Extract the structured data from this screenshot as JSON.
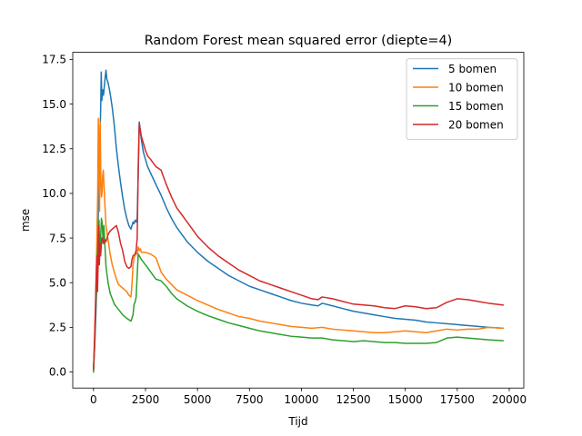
{
  "chart_data": {
    "type": "line",
    "title": "Random Forest mean squared error (diepte=4)",
    "xlabel": "Tijd",
    "ylabel": "mse",
    "xlim": [
      -1000,
      20700
    ],
    "ylim": [
      -0.9,
      17.9
    ],
    "xticks": [
      0,
      2500,
      5000,
      7500,
      10000,
      12500,
      15000,
      17500,
      20000
    ],
    "yticks": [
      0.0,
      2.5,
      5.0,
      7.5,
      10.0,
      12.5,
      15.0,
      17.5
    ],
    "xtick_labels": [
      "0",
      "2500",
      "5000",
      "7500",
      "10000",
      "12500",
      "15000",
      "17500",
      "20000"
    ],
    "ytick_labels": [
      "0.0",
      "2.5",
      "5.0",
      "7.5",
      "10.0",
      "12.5",
      "15.0",
      "17.5"
    ],
    "grid": false,
    "legend_position": "top-right",
    "series": [
      {
        "name": "5 bomen",
        "color": "#1f77b4",
        "points": [
          [
            0,
            0.2
          ],
          [
            60,
            1.5
          ],
          [
            120,
            3.5
          ],
          [
            180,
            6
          ],
          [
            230,
            9
          ],
          [
            260,
            11
          ],
          [
            300,
            13
          ],
          [
            340,
            14.5
          ],
          [
            370,
            16.8
          ],
          [
            400,
            15.2
          ],
          [
            440,
            15.8
          ],
          [
            480,
            15.5
          ],
          [
            520,
            16
          ],
          [
            560,
            16.5
          ],
          [
            600,
            16.9
          ],
          [
            640,
            16.4
          ],
          [
            700,
            16.2
          ],
          [
            800,
            15.6
          ],
          [
            900,
            14.8
          ],
          [
            1000,
            13.8
          ],
          [
            1100,
            12.5
          ],
          [
            1200,
            11.5
          ],
          [
            1300,
            10.6
          ],
          [
            1400,
            9.8
          ],
          [
            1500,
            9.1
          ],
          [
            1600,
            8.6
          ],
          [
            1700,
            8.2
          ],
          [
            1800,
            8
          ],
          [
            1850,
            8.2
          ],
          [
            1900,
            8.4
          ],
          [
            1950,
            8.3
          ],
          [
            2000,
            8.5
          ],
          [
            2050,
            8.4
          ],
          [
            2100,
            8.6
          ],
          [
            2150,
            11
          ],
          [
            2200,
            14
          ],
          [
            2300,
            13
          ],
          [
            2400,
            12.3
          ],
          [
            2600,
            11.5
          ],
          [
            2800,
            11
          ],
          [
            3000,
            10.5
          ],
          [
            3250,
            9.9
          ],
          [
            3500,
            9.2
          ],
          [
            3750,
            8.6
          ],
          [
            4000,
            8.1
          ],
          [
            4250,
            7.7
          ],
          [
            4500,
            7.3
          ],
          [
            4750,
            7
          ],
          [
            5000,
            6.7
          ],
          [
            5500,
            6.2
          ],
          [
            6000,
            5.8
          ],
          [
            6500,
            5.4
          ],
          [
            7000,
            5.1
          ],
          [
            7500,
            4.8
          ],
          [
            8000,
            4.6
          ],
          [
            8500,
            4.4
          ],
          [
            9000,
            4.2
          ],
          [
            9500,
            4
          ],
          [
            10000,
            3.85
          ],
          [
            10500,
            3.75
          ],
          [
            10800,
            3.7
          ],
          [
            11000,
            3.85
          ],
          [
            11500,
            3.7
          ],
          [
            12000,
            3.55
          ],
          [
            12500,
            3.4
          ],
          [
            13000,
            3.3
          ],
          [
            13500,
            3.2
          ],
          [
            14000,
            3.1
          ],
          [
            14500,
            3
          ],
          [
            15000,
            2.95
          ],
          [
            15500,
            2.9
          ],
          [
            16000,
            2.8
          ],
          [
            16500,
            2.75
          ],
          [
            17000,
            2.7
          ],
          [
            17500,
            2.65
          ],
          [
            18000,
            2.6
          ],
          [
            18500,
            2.55
          ],
          [
            19000,
            2.5
          ],
          [
            19700,
            2.45
          ]
        ]
      },
      {
        "name": "10 bomen",
        "color": "#ff7f0e",
        "points": [
          [
            0,
            0.1
          ],
          [
            50,
            1.5
          ],
          [
            100,
            4
          ],
          [
            140,
            6
          ],
          [
            170,
            8
          ],
          [
            200,
            10
          ],
          [
            230,
            14.2
          ],
          [
            260,
            12
          ],
          [
            290,
            9
          ],
          [
            320,
            14
          ],
          [
            350,
            11
          ],
          [
            380,
            9.8
          ],
          [
            410,
            10
          ],
          [
            440,
            11
          ],
          [
            470,
            11.3
          ],
          [
            500,
            10.5
          ],
          [
            550,
            9.3
          ],
          [
            600,
            8.2
          ],
          [
            700,
            7.4
          ],
          [
            800,
            6.6
          ],
          [
            900,
            6
          ],
          [
            1000,
            5.6
          ],
          [
            1100,
            5.2
          ],
          [
            1200,
            4.9
          ],
          [
            1300,
            4.8
          ],
          [
            1400,
            4.7
          ],
          [
            1500,
            4.6
          ],
          [
            1600,
            4.5
          ],
          [
            1700,
            4.3
          ],
          [
            1800,
            4.2
          ],
          [
            1850,
            4.9
          ],
          [
            1900,
            6
          ],
          [
            1950,
            6.4
          ],
          [
            2000,
            6.5
          ],
          [
            2050,
            6.7
          ],
          [
            2100,
            6.6
          ],
          [
            2150,
            7
          ],
          [
            2200,
            6.8
          ],
          [
            2250,
            6.9
          ],
          [
            2300,
            6.7
          ],
          [
            2500,
            6.7
          ],
          [
            2750,
            6.6
          ],
          [
            3000,
            6.4
          ],
          [
            3250,
            5.6
          ],
          [
            3500,
            5.2
          ],
          [
            3750,
            4.9
          ],
          [
            4000,
            4.6
          ],
          [
            4500,
            4.3
          ],
          [
            5000,
            4
          ],
          [
            5500,
            3.75
          ],
          [
            6000,
            3.5
          ],
          [
            6500,
            3.3
          ],
          [
            7000,
            3.1
          ],
          [
            7500,
            3
          ],
          [
            8000,
            2.85
          ],
          [
            8500,
            2.75
          ],
          [
            9000,
            2.65
          ],
          [
            9500,
            2.55
          ],
          [
            10000,
            2.5
          ],
          [
            10500,
            2.45
          ],
          [
            11000,
            2.5
          ],
          [
            11500,
            2.4
          ],
          [
            12000,
            2.35
          ],
          [
            12500,
            2.3
          ],
          [
            13000,
            2.25
          ],
          [
            13500,
            2.2
          ],
          [
            14000,
            2.2
          ],
          [
            14500,
            2.25
          ],
          [
            15000,
            2.3
          ],
          [
            15500,
            2.25
          ],
          [
            16000,
            2.2
          ],
          [
            16500,
            2.3
          ],
          [
            17000,
            2.4
          ],
          [
            17500,
            2.35
          ],
          [
            18000,
            2.4
          ],
          [
            18500,
            2.4
          ],
          [
            19000,
            2.5
          ],
          [
            19700,
            2.45
          ]
        ]
      },
      {
        "name": "15 bomen",
        "color": "#2ca02c",
        "points": [
          [
            0,
            0
          ],
          [
            50,
            1.5
          ],
          [
            100,
            3.5
          ],
          [
            140,
            4.5
          ],
          [
            180,
            6.5
          ],
          [
            220,
            7.5
          ],
          [
            260,
            8.5
          ],
          [
            300,
            6.8
          ],
          [
            340,
            7.5
          ],
          [
            380,
            8.6
          ],
          [
            420,
            8.3
          ],
          [
            460,
            7.2
          ],
          [
            500,
            8.2
          ],
          [
            550,
            7
          ],
          [
            600,
            5.9
          ],
          [
            700,
            5
          ],
          [
            800,
            4.4
          ],
          [
            900,
            4.1
          ],
          [
            1000,
            3.8
          ],
          [
            1200,
            3.5
          ],
          [
            1400,
            3.2
          ],
          [
            1600,
            3
          ],
          [
            1800,
            2.85
          ],
          [
            1900,
            3.2
          ],
          [
            1950,
            3.8
          ],
          [
            2000,
            3.9
          ],
          [
            2050,
            4.2
          ],
          [
            2100,
            5.4
          ],
          [
            2150,
            6.6
          ],
          [
            2200,
            6.5
          ],
          [
            2300,
            6.3
          ],
          [
            2500,
            6
          ],
          [
            2750,
            5.6
          ],
          [
            3000,
            5.2
          ],
          [
            3250,
            5.1
          ],
          [
            3500,
            4.8
          ],
          [
            3750,
            4.4
          ],
          [
            4000,
            4.1
          ],
          [
            4500,
            3.7
          ],
          [
            5000,
            3.4
          ],
          [
            5500,
            3.15
          ],
          [
            6000,
            2.95
          ],
          [
            6500,
            2.75
          ],
          [
            7000,
            2.6
          ],
          [
            7500,
            2.45
          ],
          [
            8000,
            2.3
          ],
          [
            8500,
            2.2
          ],
          [
            9000,
            2.1
          ],
          [
            9500,
            2
          ],
          [
            10000,
            1.95
          ],
          [
            10500,
            1.9
          ],
          [
            11000,
            1.9
          ],
          [
            11500,
            1.8
          ],
          [
            12000,
            1.75
          ],
          [
            12500,
            1.7
          ],
          [
            13000,
            1.75
          ],
          [
            13500,
            1.7
          ],
          [
            14000,
            1.65
          ],
          [
            14500,
            1.65
          ],
          [
            15000,
            1.6
          ],
          [
            15500,
            1.6
          ],
          [
            16000,
            1.6
          ],
          [
            16500,
            1.65
          ],
          [
            17000,
            1.9
          ],
          [
            17500,
            1.95
          ],
          [
            18000,
            1.9
          ],
          [
            18500,
            1.85
          ],
          [
            19000,
            1.8
          ],
          [
            19700,
            1.75
          ]
        ]
      },
      {
        "name": "20 bomen",
        "color": "#d62728",
        "points": [
          [
            0,
            0.15
          ],
          [
            50,
            2
          ],
          [
            100,
            4
          ],
          [
            130,
            5.5
          ],
          [
            160,
            6.5
          ],
          [
            190,
            4.5
          ],
          [
            220,
            6
          ],
          [
            250,
            8.2
          ],
          [
            280,
            6
          ],
          [
            310,
            7.2
          ],
          [
            340,
            6.5
          ],
          [
            370,
            7
          ],
          [
            400,
            7.5
          ],
          [
            450,
            7.4
          ],
          [
            500,
            7.2
          ],
          [
            550,
            7.4
          ],
          [
            600,
            7.3
          ],
          [
            700,
            7.7
          ],
          [
            800,
            7.9
          ],
          [
            900,
            8
          ],
          [
            1000,
            8.1
          ],
          [
            1100,
            8.2
          ],
          [
            1200,
            7.8
          ],
          [
            1300,
            7.2
          ],
          [
            1400,
            6.8
          ],
          [
            1500,
            6.2
          ],
          [
            1600,
            5.9
          ],
          [
            1700,
            5.8
          ],
          [
            1800,
            5.9
          ],
          [
            1850,
            6.3
          ],
          [
            1900,
            6.5
          ],
          [
            2000,
            6.6
          ],
          [
            2050,
            6.8
          ],
          [
            2100,
            7.5
          ],
          [
            2150,
            11.5
          ],
          [
            2200,
            13.9
          ],
          [
            2300,
            13.2
          ],
          [
            2400,
            12.8
          ],
          [
            2500,
            12.4
          ],
          [
            2600,
            12.1
          ],
          [
            2750,
            11.9
          ],
          [
            3000,
            11.5
          ],
          [
            3250,
            11.3
          ],
          [
            3500,
            10.5
          ],
          [
            3750,
            9.8
          ],
          [
            4000,
            9.2
          ],
          [
            4250,
            8.8
          ],
          [
            4500,
            8.4
          ],
          [
            4750,
            8
          ],
          [
            5000,
            7.6
          ],
          [
            5500,
            7
          ],
          [
            6000,
            6.5
          ],
          [
            6500,
            6.1
          ],
          [
            7000,
            5.7
          ],
          [
            7500,
            5.4
          ],
          [
            8000,
            5.1
          ],
          [
            8500,
            4.9
          ],
          [
            9000,
            4.7
          ],
          [
            9500,
            4.5
          ],
          [
            10000,
            4.3
          ],
          [
            10500,
            4.1
          ],
          [
            10800,
            4.05
          ],
          [
            11000,
            4.2
          ],
          [
            11500,
            4.1
          ],
          [
            12000,
            3.95
          ],
          [
            12500,
            3.8
          ],
          [
            13000,
            3.75
          ],
          [
            13500,
            3.7
          ],
          [
            14000,
            3.6
          ],
          [
            14500,
            3.55
          ],
          [
            15000,
            3.7
          ],
          [
            15500,
            3.65
          ],
          [
            16000,
            3.55
          ],
          [
            16500,
            3.6
          ],
          [
            17000,
            3.9
          ],
          [
            17500,
            4.1
          ],
          [
            18000,
            4.05
          ],
          [
            18500,
            3.95
          ],
          [
            19000,
            3.85
          ],
          [
            19700,
            3.75
          ]
        ]
      }
    ]
  }
}
